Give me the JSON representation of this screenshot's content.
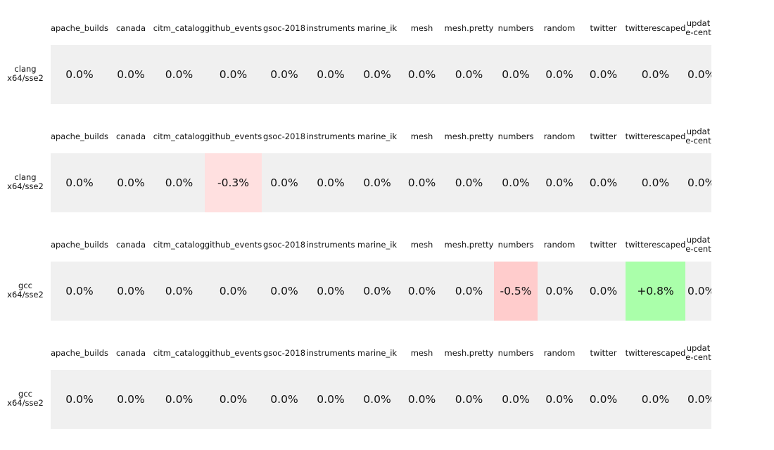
{
  "chart_data": {
    "type": "heatmap",
    "columns": [
      "apache_builds",
      "canada",
      "citm_catalog",
      "github_events",
      "gsoc-2018",
      "instruments",
      "marine_ik",
      "mesh",
      "mesh.pretty",
      "numbers",
      "random",
      "twitter",
      "twitterescaped",
      "update-center"
    ],
    "rows": [
      {
        "label_lines": [
          "clang",
          "x64/sse2"
        ],
        "values": [
          "0.0%",
          "0.0%",
          "0.0%",
          "0.0%",
          "0.0%",
          "0.0%",
          "0.0%",
          "0.0%",
          "0.0%",
          "0.0%",
          "0.0%",
          "0.0%",
          "0.0%",
          "0.0%"
        ],
        "numeric": [
          0,
          0,
          0,
          0,
          0,
          0,
          0,
          0,
          0,
          0,
          0,
          0,
          0,
          0
        ]
      },
      {
        "label_lines": [
          "clang",
          "x64/sse2"
        ],
        "values": [
          "0.0%",
          "0.0%",
          "0.0%",
          "-0.3%",
          "0.0%",
          "0.0%",
          "0.0%",
          "0.0%",
          "0.0%",
          "0.0%",
          "0.0%",
          "0.0%",
          "0.0%",
          "0.0%"
        ],
        "numeric": [
          0,
          0,
          0,
          -0.3,
          0,
          0,
          0,
          0,
          0,
          0,
          0,
          0,
          0,
          0
        ]
      },
      {
        "label_lines": [
          "gcc",
          "x64/sse2"
        ],
        "values": [
          "0.0%",
          "0.0%",
          "0.0%",
          "0.0%",
          "0.0%",
          "0.0%",
          "0.0%",
          "0.0%",
          "0.0%",
          "-0.5%",
          "0.0%",
          "0.0%",
          "+0.8%",
          "0.0%"
        ],
        "numeric": [
          0,
          0,
          0,
          0,
          0,
          0,
          0,
          0,
          0,
          -0.5,
          0,
          0,
          0.8,
          0
        ]
      },
      {
        "label_lines": [
          "gcc",
          "x64/sse2"
        ],
        "values": [
          "0.0%",
          "0.0%",
          "0.0%",
          "0.0%",
          "0.0%",
          "0.0%",
          "0.0%",
          "0.0%",
          "0.0%",
          "0.0%",
          "0.0%",
          "0.0%",
          "0.0%",
          "0.0%"
        ],
        "numeric": [
          0,
          0,
          0,
          0,
          0,
          0,
          0,
          0,
          0,
          0,
          0,
          0,
          0,
          0
        ]
      }
    ],
    "colors": {
      "neutral": "#f0f0f0",
      "slight_negative": "#ffe0e0",
      "negative": "#ffcccc",
      "positive": "#aaffaa"
    }
  }
}
